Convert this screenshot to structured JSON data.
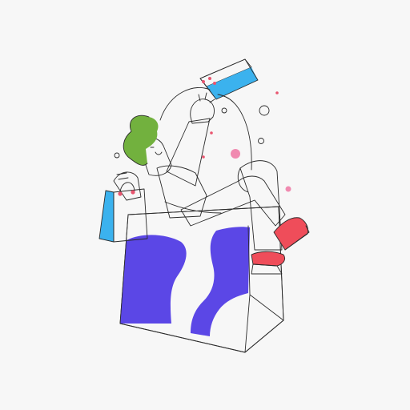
{
  "illustration": {
    "subject": "person-sitting-in-shopping-bag",
    "colors": {
      "background": "#f7f7f7",
      "outline": "#2b2b2b",
      "fill_white": "#ffffff",
      "hair": "#72b13e",
      "bag_blue": "#3bb2ee",
      "shape_purple": "#5b47e6",
      "shoe_red": "#ef4d5a",
      "dot_pink": "#f08ab0",
      "dot_red": "#e9556f"
    },
    "icons": [
      "shopping-bag-icon",
      "gift-box-icon",
      "bubble-icon"
    ]
  }
}
